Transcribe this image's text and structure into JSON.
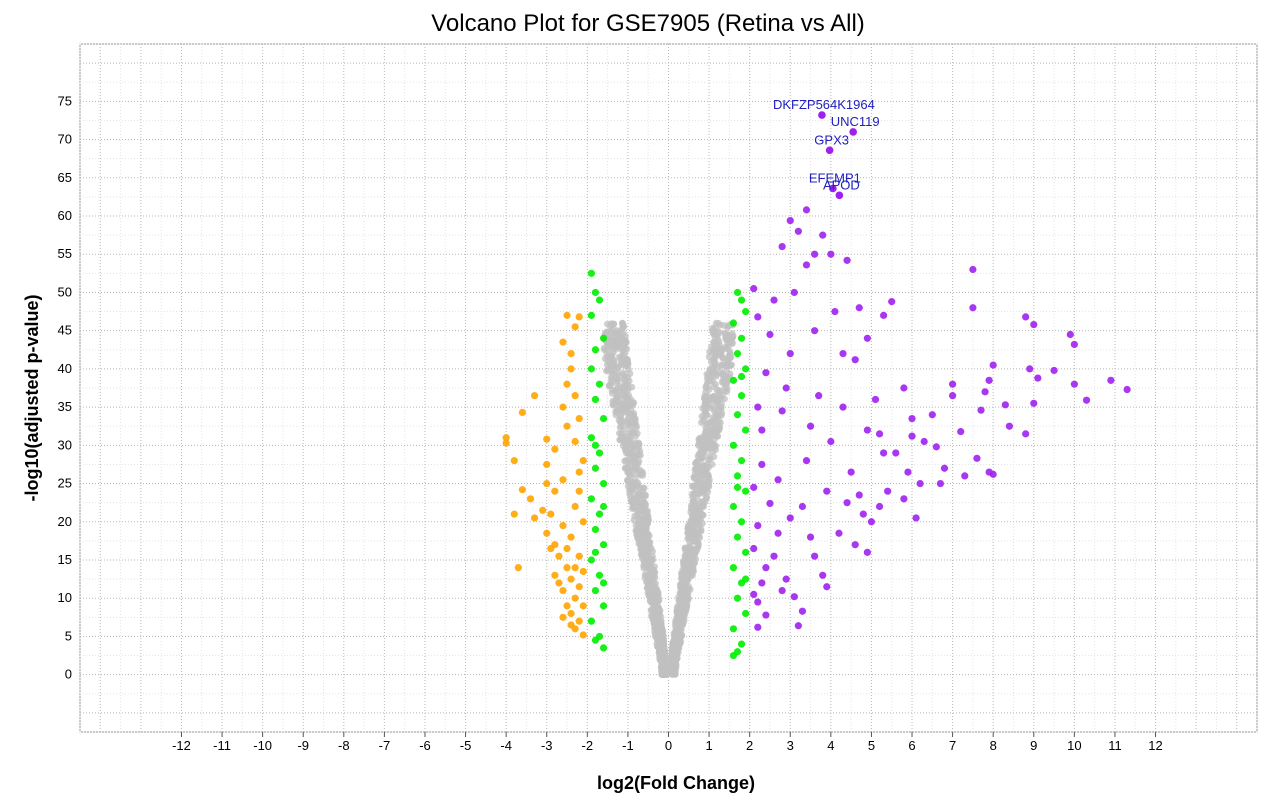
{
  "chart_data": {
    "type": "scatter",
    "title": "Volcano Plot for GSE7905 (Retina vs All)",
    "xlabel": "log2(Fold Change)",
    "ylabel": "-log10(adjusted p-value)",
    "xlim": [
      -14.5,
      14.5
    ],
    "ylim": [
      -7.5,
      82.5
    ],
    "x_ticks": [
      -12,
      -11,
      -10,
      -9,
      -8,
      -7,
      -6,
      -5,
      -4,
      -3,
      -2,
      -1,
      0,
      1,
      2,
      3,
      4,
      5,
      6,
      7,
      8,
      9,
      10,
      11,
      12
    ],
    "y_ticks": [
      0,
      5,
      10,
      15,
      20,
      25,
      30,
      35,
      40,
      45,
      50,
      55,
      60,
      65,
      70,
      75
    ],
    "grid": true,
    "colors": {
      "not_significant": "#c0c0c0",
      "moderate_change": "#00ee00",
      "downregulated": "#ffa500",
      "upregulated": "#a020f0",
      "gene_label": "#2020c0"
    },
    "labeled_genes": [
      {
        "name": "DKFZP564K1964",
        "x": 3.78,
        "y": 73.2
      },
      {
        "name": "UNC119",
        "x": 4.55,
        "y": 71.0
      },
      {
        "name": "GPX3",
        "x": 3.97,
        "y": 68.6
      },
      {
        "name": "EFEMP1",
        "x": 4.05,
        "y": 63.6
      },
      {
        "name": "APOD",
        "x": 4.21,
        "y": 62.7
      }
    ],
    "upregulated_points": [
      [
        7.5,
        53.0
      ],
      [
        10.9,
        38.5
      ],
      [
        11.3,
        37.3
      ],
      [
        10.0,
        38.0
      ],
      [
        9.9,
        44.5
      ],
      [
        10.0,
        43.2
      ],
      [
        9.5,
        39.8
      ],
      [
        10.3,
        35.9
      ],
      [
        8.8,
        46.8
      ],
      [
        9.0,
        45.8
      ],
      [
        8.9,
        40.0
      ],
      [
        9.1,
        38.8
      ],
      [
        9.0,
        35.5
      ],
      [
        8.8,
        31.5
      ],
      [
        8.4,
        32.5
      ],
      [
        8.3,
        35.3
      ],
      [
        7.9,
        38.5
      ],
      [
        8.0,
        40.5
      ],
      [
        7.8,
        37.0
      ],
      [
        7.7,
        34.6
      ],
      [
        7.6,
        28.3
      ],
      [
        8.0,
        26.2
      ],
      [
        7.9,
        26.5
      ],
      [
        7.5,
        48.0
      ],
      [
        7.0,
        38.0
      ],
      [
        7.0,
        36.5
      ],
      [
        6.5,
        34.0
      ],
      [
        6.0,
        33.5
      ],
      [
        6.0,
        31.2
      ],
      [
        5.8,
        37.5
      ],
      [
        5.5,
        48.8
      ],
      [
        5.3,
        47.0
      ],
      [
        5.2,
        31.5
      ],
      [
        4.9,
        44.0
      ],
      [
        4.6,
        41.2
      ],
      [
        4.7,
        48.0
      ],
      [
        3.6,
        55.0
      ],
      [
        3.4,
        53.6
      ],
      [
        4.3,
        42.0
      ],
      [
        3.4,
        60.8
      ],
      [
        3.0,
        59.4
      ],
      [
        3.2,
        58.0
      ],
      [
        3.8,
        57.5
      ],
      [
        4.0,
        55.0
      ],
      [
        4.4,
        54.2
      ],
      [
        3.1,
        50.0
      ],
      [
        2.8,
        56.0
      ],
      [
        5.1,
        36.0
      ],
      [
        5.6,
        29.0
      ],
      [
        6.3,
        30.5
      ],
      [
        6.6,
        29.8
      ],
      [
        6.2,
        25.0
      ],
      [
        5.4,
        24.0
      ],
      [
        5.8,
        23.0
      ],
      [
        4.8,
        21.0
      ],
      [
        4.4,
        22.5
      ],
      [
        5.0,
        20.0
      ],
      [
        4.6,
        17.0
      ],
      [
        4.9,
        16.0
      ],
      [
        3.8,
        13.0
      ],
      [
        3.9,
        11.5
      ],
      [
        3.1,
        10.2
      ],
      [
        3.3,
        8.3
      ],
      [
        2.4,
        7.8
      ],
      [
        2.2,
        6.2
      ],
      [
        3.2,
        6.4
      ],
      [
        2.9,
        12.5
      ],
      [
        2.6,
        15.5
      ],
      [
        3.5,
        18.0
      ],
      [
        3.0,
        20.5
      ],
      [
        2.5,
        22.4
      ],
      [
        2.7,
        25.5
      ],
      [
        3.4,
        28.0
      ],
      [
        4.0,
        30.5
      ],
      [
        2.3,
        32.0
      ],
      [
        2.8,
        34.5
      ],
      [
        3.7,
        36.5
      ],
      [
        2.4,
        39.5
      ],
      [
        3.0,
        42.0
      ],
      [
        2.5,
        44.5
      ],
      [
        2.2,
        46.8
      ],
      [
        3.6,
        45.0
      ],
      [
        4.1,
        47.5
      ],
      [
        2.1,
        50.5
      ],
      [
        2.6,
        49.0
      ],
      [
        6.8,
        27.0
      ],
      [
        7.2,
        31.8
      ],
      [
        6.1,
        20.5
      ],
      [
        5.2,
        22.0
      ],
      [
        5.9,
        26.5
      ],
      [
        7.3,
        26.0
      ],
      [
        6.7,
        25.0
      ],
      [
        4.3,
        35.0
      ],
      [
        4.9,
        32.0
      ],
      [
        5.3,
        29.0
      ],
      [
        4.5,
        26.5
      ],
      [
        3.9,
        24.0
      ],
      [
        3.3,
        22.0
      ],
      [
        2.7,
        18.5
      ],
      [
        2.4,
        14.0
      ],
      [
        2.8,
        11.0
      ],
      [
        2.2,
        9.5
      ],
      [
        3.6,
        15.5
      ],
      [
        4.2,
        18.5
      ],
      [
        4.7,
        23.5
      ],
      [
        3.5,
        32.5
      ],
      [
        2.9,
        37.5
      ],
      [
        2.2,
        35.0
      ],
      [
        2.3,
        27.5
      ],
      [
        2.1,
        24.5
      ],
      [
        2.2,
        19.5
      ],
      [
        2.1,
        16.5
      ],
      [
        2.3,
        12.0
      ],
      [
        2.1,
        10.5
      ]
    ],
    "downregulated_points": [
      [
        -4.0,
        31.0
      ],
      [
        -4.0,
        30.3
      ],
      [
        -3.8,
        28.0
      ],
      [
        -3.6,
        34.3
      ],
      [
        -3.3,
        36.5
      ],
      [
        -2.5,
        47.0
      ],
      [
        -2.2,
        46.8
      ],
      [
        -2.3,
        45.5
      ],
      [
        -2.6,
        43.5
      ],
      [
        -2.4,
        42.0
      ],
      [
        -2.5,
        38.0
      ],
      [
        -2.3,
        36.5
      ],
      [
        -2.6,
        35.0
      ],
      [
        -2.5,
        32.5
      ],
      [
        -3.0,
        30.8
      ],
      [
        -2.8,
        29.5
      ],
      [
        -2.3,
        30.5
      ],
      [
        -3.0,
        27.5
      ],
      [
        -3.0,
        25.0
      ],
      [
        -2.6,
        25.5
      ],
      [
        -2.8,
        24.0
      ],
      [
        -3.6,
        24.2
      ],
      [
        -3.4,
        23.0
      ],
      [
        -3.8,
        21.0
      ],
      [
        -3.1,
        21.5
      ],
      [
        -3.3,
        20.5
      ],
      [
        -3.7,
        14.0
      ],
      [
        -3.0,
        18.5
      ],
      [
        -2.8,
        17.0
      ],
      [
        -2.7,
        15.5
      ],
      [
        -2.5,
        14.0
      ],
      [
        -2.8,
        13.0
      ],
      [
        -2.4,
        12.5
      ],
      [
        -2.6,
        11.0
      ],
      [
        -2.3,
        10.0
      ],
      [
        -2.5,
        9.0
      ],
      [
        -2.4,
        8.0
      ],
      [
        -2.2,
        7.0
      ],
      [
        -2.3,
        6.0
      ],
      [
        -2.1,
        5.2
      ],
      [
        -2.2,
        15.5
      ],
      [
        -2.4,
        18.0
      ],
      [
        -2.1,
        20.0
      ],
      [
        -2.3,
        22.0
      ],
      [
        -2.2,
        24.0
      ],
      [
        -2.2,
        26.5
      ],
      [
        -2.1,
        28.0
      ],
      [
        -2.9,
        21.0
      ],
      [
        -2.6,
        19.5
      ],
      [
        -2.9,
        16.5
      ],
      [
        -2.7,
        12.0
      ],
      [
        -2.2,
        11.5
      ],
      [
        -2.1,
        13.5
      ],
      [
        -2.5,
        16.5
      ],
      [
        -2.3,
        14.0
      ],
      [
        -2.1,
        9.0
      ],
      [
        -2.4,
        6.5
      ],
      [
        -2.6,
        7.5
      ],
      [
        -2.2,
        33.5
      ],
      [
        -2.4,
        40.0
      ]
    ],
    "moderate_points": [
      [
        -1.9,
        52.5
      ],
      [
        -1.8,
        50.0
      ],
      [
        -1.7,
        49.0
      ],
      [
        -1.9,
        47.0
      ],
      [
        -1.6,
        44.0
      ],
      [
        -1.8,
        42.5
      ],
      [
        -1.9,
        40.0
      ],
      [
        -1.7,
        38.0
      ],
      [
        -1.8,
        36.0
      ],
      [
        -1.6,
        33.5
      ],
      [
        -1.9,
        31.0
      ],
      [
        -1.7,
        29.0
      ],
      [
        -1.8,
        27.0
      ],
      [
        -1.6,
        25.0
      ],
      [
        -1.9,
        23.0
      ],
      [
        -1.7,
        21.0
      ],
      [
        -1.8,
        19.0
      ],
      [
        -1.6,
        17.0
      ],
      [
        -1.9,
        15.0
      ],
      [
        -1.7,
        13.0
      ],
      [
        -1.8,
        11.0
      ],
      [
        -1.6,
        9.0
      ],
      [
        -1.9,
        7.0
      ],
      [
        -1.7,
        5.0
      ],
      [
        -1.6,
        3.5
      ],
      [
        -1.8,
        4.5
      ],
      [
        -1.6,
        12.0
      ],
      [
        -1.8,
        16.0
      ],
      [
        -1.6,
        22.0
      ],
      [
        -1.8,
        30.0
      ],
      [
        1.7,
        50.0
      ],
      [
        1.8,
        49.0
      ],
      [
        1.9,
        47.5
      ],
      [
        1.6,
        46.0
      ],
      [
        1.8,
        44.0
      ],
      [
        1.7,
        42.0
      ],
      [
        1.9,
        40.0
      ],
      [
        1.6,
        38.5
      ],
      [
        1.8,
        36.5
      ],
      [
        1.7,
        34.0
      ],
      [
        1.9,
        32.0
      ],
      [
        1.6,
        30.0
      ],
      [
        1.8,
        28.0
      ],
      [
        1.7,
        26.0
      ],
      [
        1.9,
        24.0
      ],
      [
        1.6,
        22.0
      ],
      [
        1.8,
        20.0
      ],
      [
        1.7,
        18.0
      ],
      [
        1.9,
        16.0
      ],
      [
        1.6,
        14.0
      ],
      [
        1.8,
        12.0
      ],
      [
        1.7,
        10.0
      ],
      [
        1.9,
        8.0
      ],
      [
        1.6,
        6.0
      ],
      [
        1.8,
        4.0
      ],
      [
        1.7,
        3.0
      ],
      [
        1.6,
        2.5
      ],
      [
        1.9,
        12.5
      ],
      [
        1.7,
        24.5
      ],
      [
        1.8,
        39.0
      ]
    ]
  }
}
